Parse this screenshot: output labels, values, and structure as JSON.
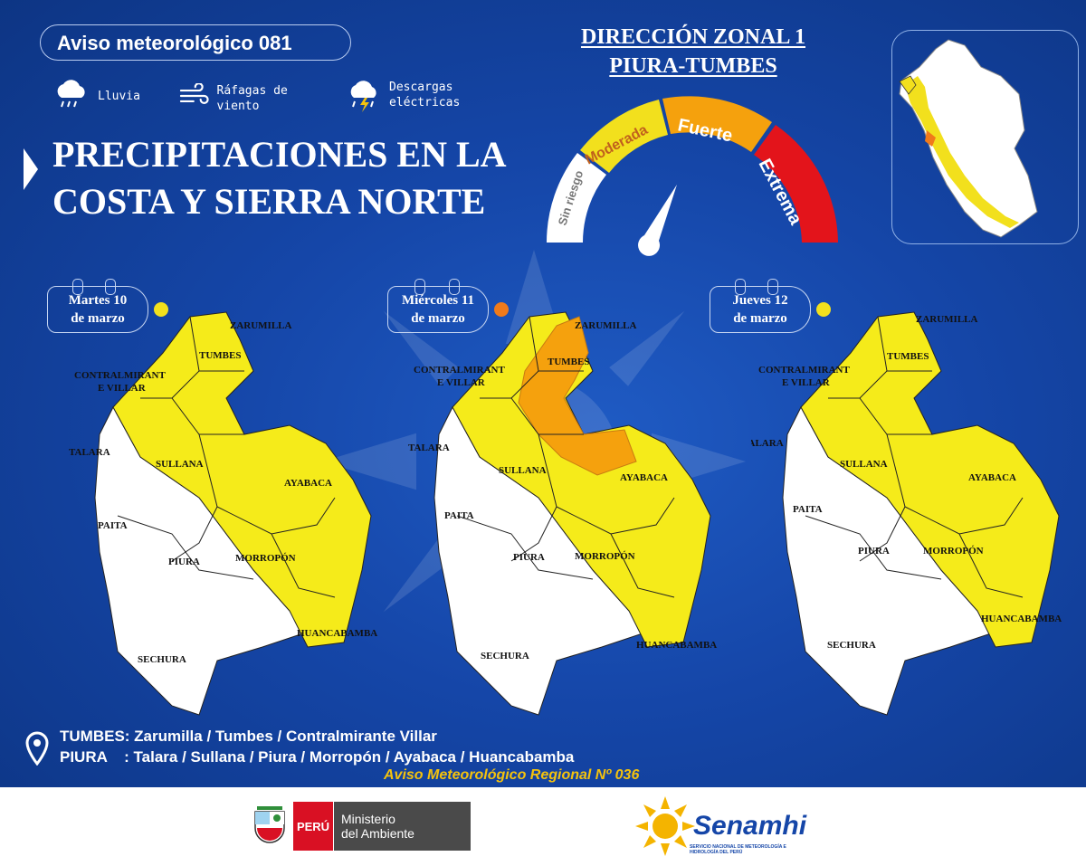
{
  "header": {
    "pill_title": "Aviso meteorológico",
    "pill_number": "081"
  },
  "legend": [
    {
      "icon": "rain-cloud-icon",
      "label": "Lluvia"
    },
    {
      "icon": "wind-gust-icon",
      "label": "Ráfagas de viento"
    },
    {
      "icon": "lightning-cloud-icon",
      "label": "Descargas eléctricas"
    }
  ],
  "headline": "PRECIPITACIONES EN LA COSTA Y SIERRA NORTE",
  "zone": {
    "line1": "DIRECCIÓN ZONAL 1",
    "line2": "PIURA-TUMBES"
  },
  "gauge": {
    "levels": [
      {
        "label": "Sin riesgo",
        "color": "#ffffff"
      },
      {
        "label": "Moderada",
        "color": "#f2e01d"
      },
      {
        "label": "Fuerte",
        "color": "#f5a10d"
      },
      {
        "label": "Extrema",
        "color": "#e3141b"
      }
    ]
  },
  "days": [
    {
      "label_line1": "Martes 10",
      "label_line2": "de marzo",
      "level_color": "#f2e01d"
    },
    {
      "label_line1": "Miércoles 11",
      "label_line2": "de marzo",
      "level_color": "#f07a1a"
    },
    {
      "label_line1": "Jueves 12",
      "label_line2": "de marzo",
      "level_color": "#f2e01d"
    }
  ],
  "provinces": {
    "zarumilla": "ZARUMILLA",
    "tumbes": "TUMBES",
    "contralmirante_1": "CONTRALMIRANT",
    "contralmirante_2": "E VILLAR",
    "talara": "TALARA",
    "sullana": "SULLANA",
    "ayabaca": "AYABACA",
    "paita": "PAITA",
    "piura": "PIURA",
    "morropon": "MORROPÓN",
    "huancabamba": "HUANCABAMBA",
    "sechura": "SECHURA"
  },
  "bottom": {
    "tumbes_line": "TUMBES: Zarumilla / Tumbes / Contralmirante Villar",
    "piura_line": "PIURA    : Talara / Sullana / Piura / Morropón / Ayabaca / Huancabamba",
    "regional": "Aviso Meteorológico Regional Nº 036"
  },
  "footer": {
    "peru": "PERÚ",
    "ministry_line1": "Ministerio",
    "ministry_line2": "del Ambiente",
    "senamhi": "Senamhi",
    "senamhi_sub": "SERVICIO NACIONAL DE METEOROLOGÍA E HIDROLOGÍA DEL PERÚ"
  }
}
